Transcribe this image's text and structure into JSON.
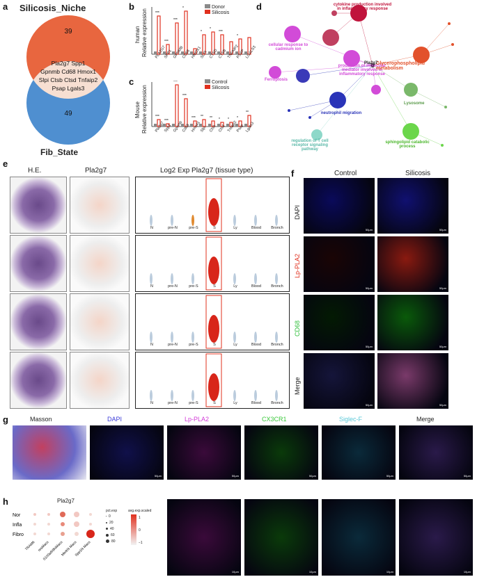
{
  "panels": {
    "a": "a",
    "b": "b",
    "c": "c",
    "d": "d",
    "e": "e",
    "f": "f",
    "g": "g",
    "h": "h"
  },
  "venn": {
    "top_label": "Silicosis_Niche",
    "bottom_label": "Fib_State",
    "top_count": "39",
    "bottom_count": "49",
    "shared_lines": [
      "Pla2g7  Spp1",
      "Gpnmb  Cd68  Hmox1",
      "Slpi   Ctsb  Ctsd  Tnfaip2",
      "Psap  Lgals3"
    ],
    "colors": {
      "top": "#e8663f",
      "bottom": "#4f8fd0",
      "overlap": "#f7dfd2"
    }
  },
  "panel_b": {
    "ylabel": "Relative expression",
    "species": "human",
    "legend": [
      "Donor",
      "Silicosis"
    ],
    "genes": [
      "PLA2G7",
      "SPP1",
      "GPNMB",
      "CD68",
      "HMOX1",
      "SLPI",
      "CTSD",
      "CTSB",
      "TNFAIP2",
      "PSAP",
      "LGALS3"
    ],
    "sig": [
      "***",
      "***",
      "***",
      "*",
      "",
      "*",
      "*",
      "***",
      "",
      "*",
      ""
    ],
    "colors": {
      "control": "#8a8a8a",
      "case": "#e0301e"
    }
  },
  "panel_c": {
    "ylabel": "Relative expression",
    "species": "Mouse",
    "legend": [
      "Control",
      "Silicosis"
    ],
    "genes": [
      "Pla2g7",
      "Spp1",
      "Gpnmb",
      "Cd68",
      "Hmox1",
      "Slpi",
      "Ctsb",
      "Ctsd",
      "Tnfaip2",
      "Psap",
      "Lgals3"
    ],
    "sig": [
      "***",
      "***",
      "***",
      "***",
      "***",
      "**",
      "**",
      "*",
      "*",
      "*",
      "**"
    ],
    "colors": {
      "control": "#8a8a8a",
      "case": "#e0301e"
    }
  },
  "panel_d": {
    "hubs": [
      {
        "label": "cytokine production involved in inflammatory response",
        "color": "#c0143c"
      },
      {
        "label": "cellular response to cadmium ion",
        "color": "#d24bd8"
      },
      {
        "label": "Ferroptosis",
        "color": "#d24bd8"
      },
      {
        "label": "production of molecular mediator involved in inflammatory response",
        "color": "#d24bd8"
      },
      {
        "label": "Glycerophospholipid metabolism",
        "color": "#e2512b"
      },
      {
        "label": "Lysosome",
        "color": "#7ab86a"
      },
      {
        "label": "neutrophil migration",
        "color": "#2a34b8"
      },
      {
        "label": "sphingolipid catabolic process",
        "color": "#6bd64b"
      },
      {
        "label": "regulation of T cell receptor signaling pathway",
        "color": "#8ed8c9"
      }
    ],
    "center_gene": "Pla2g7"
  },
  "panel_e": {
    "col_headers": [
      "H.E.",
      "Pla2g7",
      "Log2 Exp Pla2g7 (tissue type)"
    ],
    "categories": [
      "N",
      "pre-N",
      "pre-S",
      "S",
      "Ly",
      "Blood",
      "Bronch"
    ]
  },
  "panel_f": {
    "col_headers": [
      "Control",
      "Silicosis"
    ],
    "row_labels": [
      "DAPI",
      "Lp-PLA2",
      "CD68",
      "Merge"
    ],
    "row_colors": [
      "#222222",
      "#e0301e",
      "#2fbf3a",
      "#222222"
    ],
    "scale": "50μm"
  },
  "panel_g": {
    "col_headers": [
      "Masson",
      "DAPI",
      "Lp-PLA2",
      "CX3CR1",
      "Siglec-F",
      "Merge"
    ],
    "header_colors": [
      "#222222",
      "#3a3ad8",
      "#d23ad8",
      "#3ac83a",
      "#5ac8d8",
      "#222222"
    ],
    "scale": "50μm",
    "zoom_scale": "10μm"
  },
  "panel_h": {
    "title": "Pla2g7",
    "rows": [
      "Nor",
      "Infla",
      "Fibro"
    ],
    "cols": [
      "TRAM6",
      "resMacs",
      "S100a8/9hiMacs",
      "Merkhi Macs",
      "Spp1hi Macs"
    ],
    "legend_size_title": "pct.exp",
    "legend_sizes": [
      "0",
      "20",
      "40",
      "60",
      "80"
    ],
    "legend_color_title": "avg.exp.scaled",
    "legend_color_ticks": [
      "1",
      "0",
      "−1"
    ]
  }
}
